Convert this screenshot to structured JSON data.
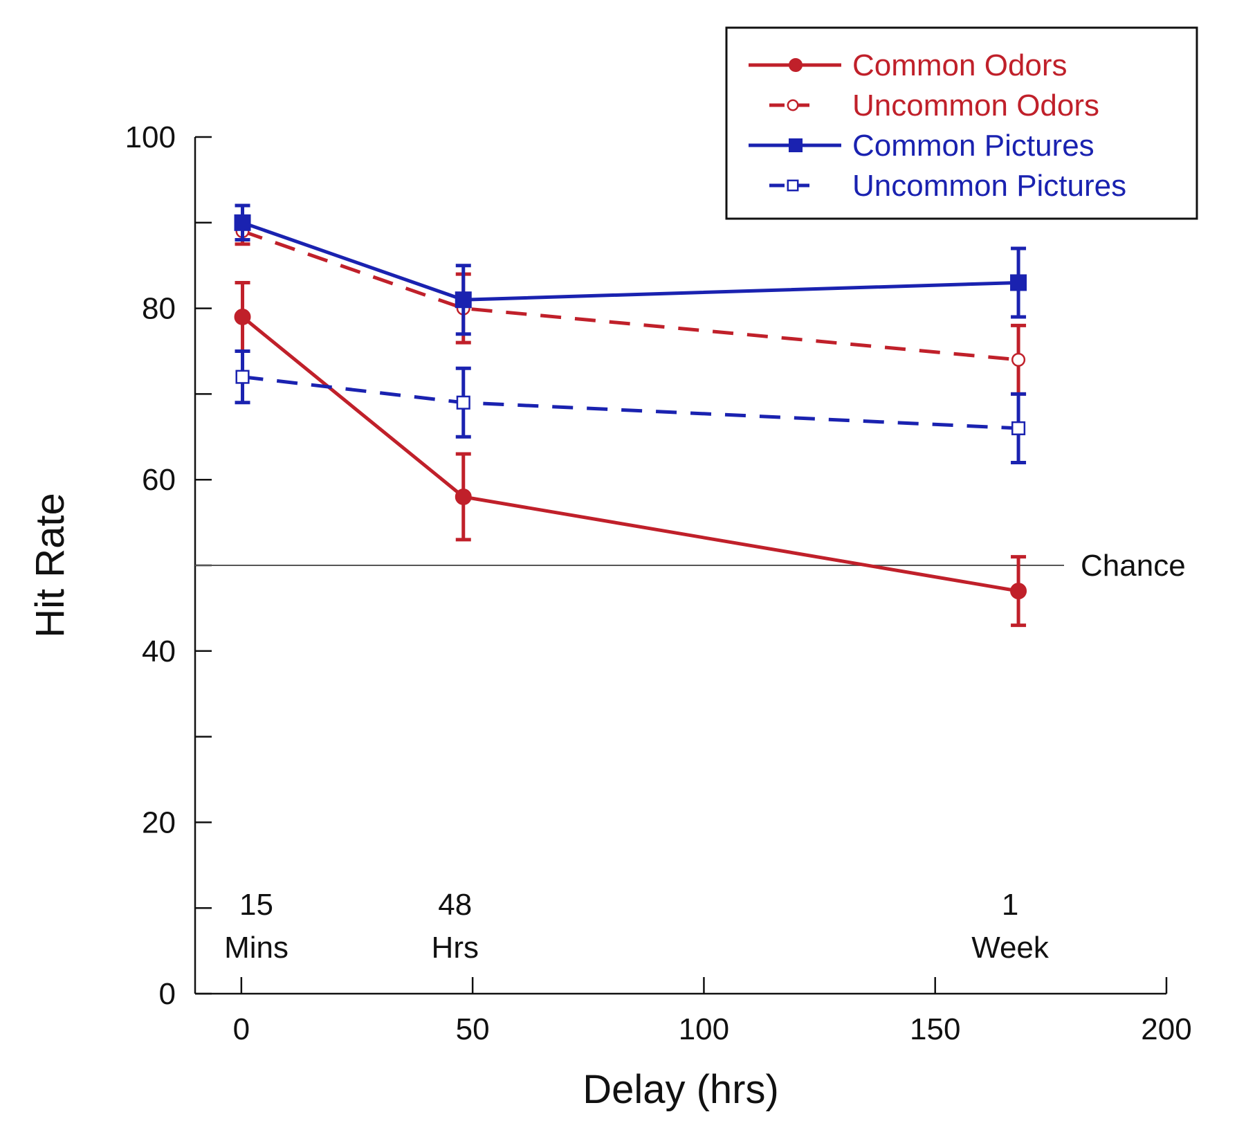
{
  "chart_data": {
    "type": "line",
    "title": "",
    "xlabel": "Delay (hrs)",
    "ylabel": "Hit Rate",
    "xlim": [
      -10,
      200
    ],
    "ylim": [
      0,
      100
    ],
    "xticks": [
      0,
      50,
      100,
      150,
      200
    ],
    "yticks": [
      0,
      10,
      20,
      30,
      40,
      50,
      60,
      70,
      80,
      90,
      100
    ],
    "ytick_labels": [
      {
        "value": 0,
        "label": "0"
      },
      {
        "value": 20,
        "label": "20"
      },
      {
        "value": 40,
        "label": "40"
      },
      {
        "value": 60,
        "label": "60"
      },
      {
        "value": 80,
        "label": "80"
      },
      {
        "value": 100,
        "label": "100"
      }
    ],
    "grid": false,
    "legend_position": "top-right",
    "reference_line": {
      "y": 50,
      "label": "Chance"
    },
    "delay_annotations": [
      {
        "x": 0.25,
        "line1": "15",
        "line2": "Mins"
      },
      {
        "x": 48,
        "line1": "48",
        "line2": "Hrs"
      },
      {
        "x": 168,
        "line1": "1",
        "line2": "Week"
      }
    ],
    "x": [
      0.25,
      48,
      168
    ],
    "series": [
      {
        "name": "Common Odors",
        "color": "#c0202a",
        "dashed": false,
        "marker": "filled-circle",
        "values": [
          79,
          58,
          47
        ],
        "errors": [
          4,
          5,
          4
        ]
      },
      {
        "name": "Uncommon Odors",
        "color": "#c0202a",
        "dashed": true,
        "marker": "open-circle",
        "values": [
          89,
          80,
          74
        ],
        "errors": [
          1.5,
          4,
          4
        ]
      },
      {
        "name": "Common Pictures",
        "color": "#1a22b0",
        "dashed": false,
        "marker": "filled-square",
        "values": [
          90,
          81,
          83
        ],
        "errors": [
          2,
          4,
          4
        ]
      },
      {
        "name": "Uncommon Pictures",
        "color": "#1a22b0",
        "dashed": true,
        "marker": "open-square",
        "values": [
          72,
          69,
          66
        ],
        "errors": [
          3,
          4,
          4
        ]
      }
    ]
  }
}
